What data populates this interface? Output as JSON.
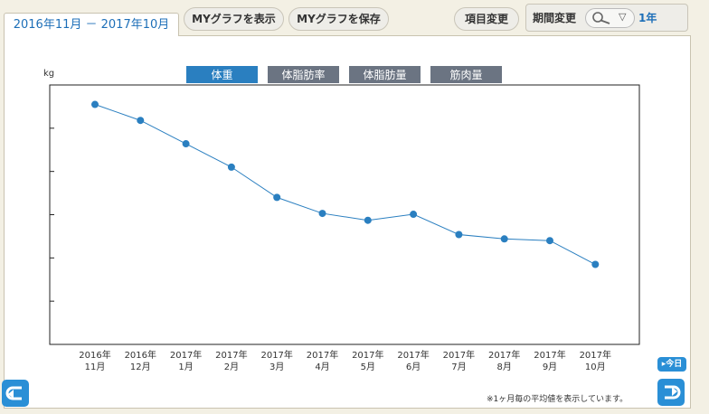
{
  "header": {
    "date_range": "2016年11月 － 2017年10月",
    "show_graph": "MYグラフを表示",
    "save_graph": "MYグラフを保存",
    "item_change": "項目変更",
    "period_change": "期間変更",
    "period_value": "1年"
  },
  "footer": {
    "note": "※1ヶ月毎の平均値を表示しています。",
    "today_label": "今日",
    "back_icon": "return-left-icon",
    "forward_icon": "return-right-icon"
  },
  "colors": {
    "accent": "#2a8fd6",
    "series": "#2a7fc0",
    "tab_active": "#2a7fc0",
    "tab_inactive": "#6b7482",
    "link_text": "#1d6fb8"
  },
  "chart_data": {
    "type": "line",
    "ylabel": "kg",
    "grid": false,
    "tabs": [
      {
        "label": "体重",
        "active": true
      },
      {
        "label": "体脂肪率",
        "active": false
      },
      {
        "label": "体脂肪量",
        "active": false
      },
      {
        "label": "筋肉量",
        "active": false
      }
    ],
    "categories": [
      [
        "2016年",
        "11月"
      ],
      [
        "2016年",
        "12月"
      ],
      [
        "2017年",
        "1月"
      ],
      [
        "2017年",
        "2月"
      ],
      [
        "2017年",
        "3月"
      ],
      [
        "2017年",
        "4月"
      ],
      [
        "2017年",
        "5月"
      ],
      [
        "2017年",
        "6月"
      ],
      [
        "2017年",
        "7月"
      ],
      [
        "2017年",
        "8月"
      ],
      [
        "2017年",
        "9月"
      ],
      [
        "2017年",
        "10月"
      ]
    ],
    "ylim": [
      0,
      6
    ],
    "series": [
      {
        "values": [
          5.55,
          5.18,
          4.64,
          4.1,
          3.4,
          3.03,
          2.87,
          3.01,
          2.54,
          2.44,
          2.4,
          1.85
        ]
      }
    ]
  }
}
